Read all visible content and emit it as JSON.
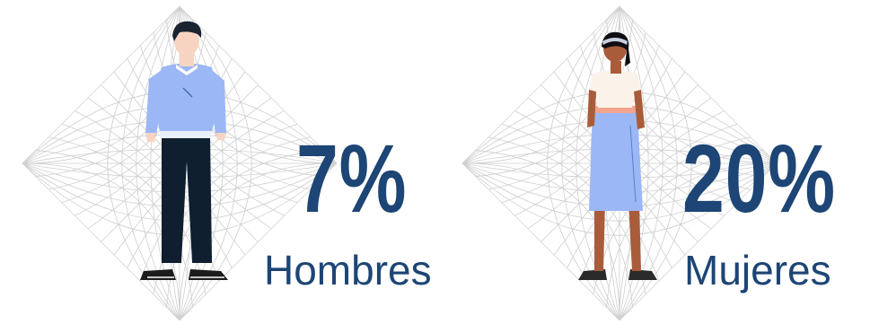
{
  "men": {
    "percent": "7%",
    "label": "Hombres"
  },
  "women": {
    "percent": "20%",
    "label": "Mujeres"
  },
  "colors": {
    "text": "#1d4575",
    "grid": "#c9c9c9",
    "sweater": "#9bb7f5",
    "pants": "#0f1f30",
    "skin_light": "#f7d4c2",
    "skin_dark": "#a95c3a",
    "skirt": "#9bb7f5"
  },
  "icons": [
    "grid-diamond-icon",
    "man-figure-icon",
    "woman-figure-icon"
  ]
}
